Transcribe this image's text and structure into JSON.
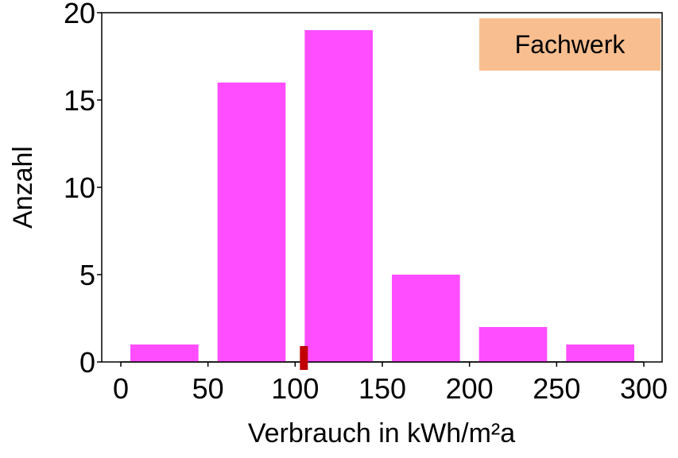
{
  "chart_data": {
    "type": "bar",
    "bins": [
      [
        0,
        50
      ],
      [
        50,
        100
      ],
      [
        100,
        150
      ],
      [
        150,
        200
      ],
      [
        200,
        250
      ],
      [
        250,
        300
      ]
    ],
    "values": [
      1,
      16,
      19,
      5,
      2,
      1
    ],
    "xlabel": "Verbrauch in kWh/m²a",
    "ylabel": "Anzahl",
    "xlim": [
      0,
      300
    ],
    "ylim": [
      0,
      20
    ],
    "xticks": [
      0,
      50,
      100,
      150,
      200,
      250,
      300
    ],
    "yticks": [
      0,
      5,
      10,
      15,
      20
    ],
    "marker_x": 105,
    "legend": {
      "label": "Fachwerk",
      "position": "top-right",
      "color": "#f9be8f"
    },
    "bar_color": "#ff4dff",
    "marker_color": "#c00000",
    "grid": false
  }
}
